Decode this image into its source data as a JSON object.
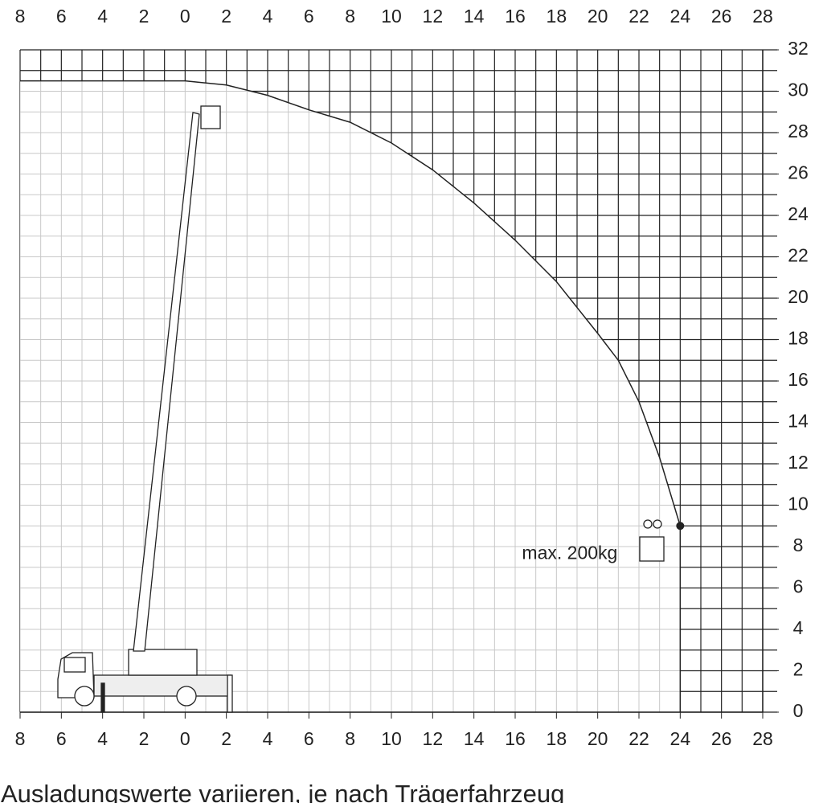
{
  "chart_data": {
    "type": "area",
    "x": [
      -8,
      0,
      2,
      4,
      6,
      8,
      10,
      12,
      14,
      16,
      18,
      20,
      21,
      22,
      23,
      24,
      24
    ],
    "values": [
      30.5,
      30.5,
      30.3,
      29.8,
      29.1,
      28.5,
      27.5,
      26.2,
      24.6,
      22.8,
      20.8,
      18.3,
      17,
      15,
      12.3,
      9,
      0
    ],
    "color": "#222222",
    "xlim": [
      -8,
      28
    ],
    "ylim": [
      0,
      32
    ],
    "xticks": [
      {
        "value": -8,
        "label": "8"
      },
      {
        "value": -6,
        "label": "6"
      },
      {
        "value": -4,
        "label": "4"
      },
      {
        "value": -2,
        "label": "2"
      },
      0,
      2,
      4,
      6,
      8,
      10,
      12,
      14,
      16,
      18,
      20,
      22,
      24,
      26,
      28
    ],
    "yticks": [
      0,
      2,
      4,
      6,
      8,
      10,
      12,
      14,
      16,
      18,
      20,
      22,
      24,
      26,
      28,
      30,
      32
    ],
    "grid": true,
    "annotation": {
      "text": "max. 200kg",
      "x": 24,
      "y": 9
    },
    "note": "Ausladungswerte variieren, je nach Trägerfahrzeug"
  }
}
